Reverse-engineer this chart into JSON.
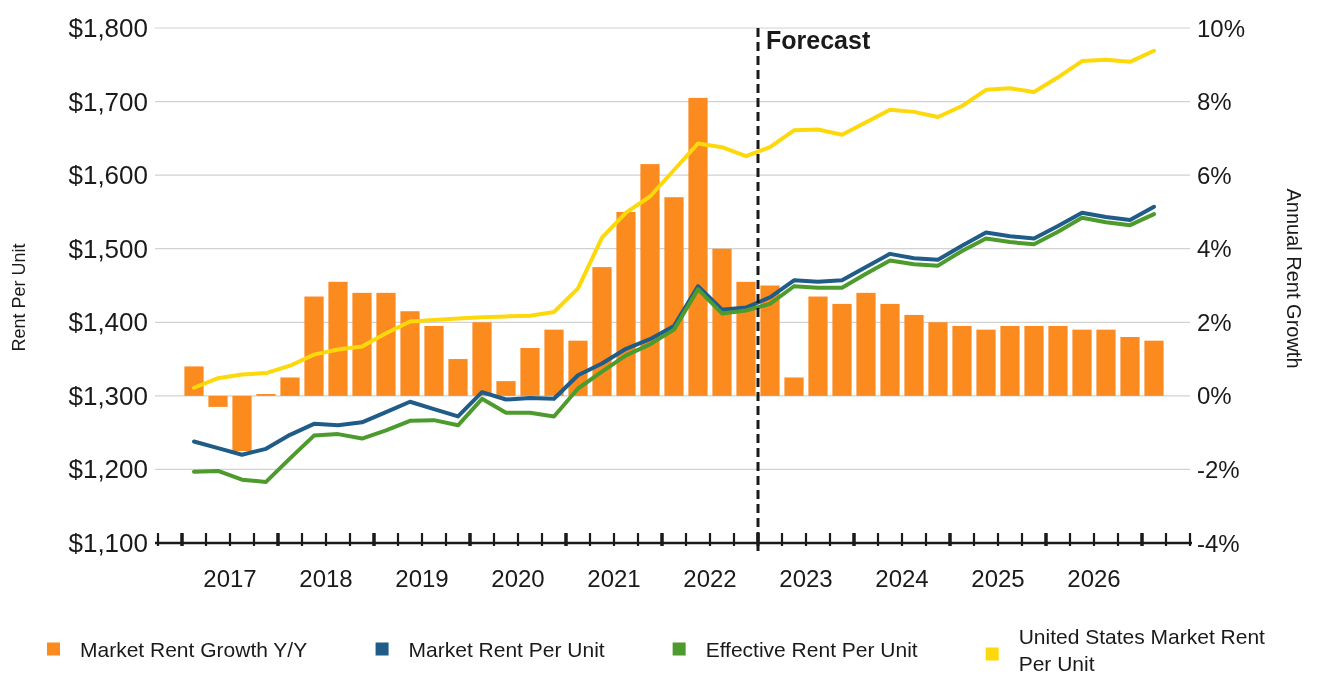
{
  "chart_data": {
    "type": "bar",
    "ylabel": "Rent Per Unit",
    "y2label": "Annual Rent Growth",
    "x": [
      2017.125,
      2017.375,
      2017.625,
      2017.875,
      2018.125,
      2018.375,
      2018.625,
      2018.875,
      2019.125,
      2019.375,
      2019.625,
      2019.875,
      2020.125,
      2020.375,
      2020.625,
      2020.875,
      2021.125,
      2021.375,
      2021.625,
      2021.875,
      2022.125,
      2022.375,
      2022.625,
      2022.875,
      2023.125,
      2023.375,
      2023.625,
      2023.875,
      2024.125,
      2024.375,
      2024.625,
      2024.875,
      2025.125,
      2025.375,
      2025.625,
      2025.875,
      2026.125,
      2026.375,
      2026.625,
      2026.875,
      2027.125
    ],
    "series": [
      {
        "name": "Market Rent Growth Y/Y",
        "axis": "y2",
        "color": "#fb8a1f",
        "values": [
          0.8,
          -0.3,
          -1.5,
          0.05,
          0.5,
          2.7,
          3.1,
          2.8,
          2.8,
          2.3,
          1.9,
          1.0,
          2.0,
          0.4,
          1.3,
          1.8,
          1.5,
          3.5,
          5.0,
          6.3,
          5.4,
          8.1,
          4.0,
          3.1,
          3.0,
          0.5,
          2.7,
          2.5,
          2.8,
          2.5,
          2.2,
          2.0,
          1.9,
          1.8,
          1.9,
          1.9,
          1.9,
          1.8,
          1.8,
          1.6,
          1.5
        ]
      },
      {
        "name": "Market Rent Per Unit",
        "type": "line",
        "color": "#1f5c87",
        "values": [
          1238,
          1229,
          1220,
          1228,
          1247,
          1262,
          1260,
          1264,
          1278,
          1292,
          1282,
          1272,
          1305,
          1295,
          1297,
          1296,
          1328,
          1344,
          1364,
          1377,
          1395,
          1449,
          1417,
          1420,
          1434,
          1457,
          1455,
          1457,
          1475,
          1493,
          1487,
          1485,
          1504,
          1522,
          1517,
          1514,
          1531,
          1549,
          1543,
          1539,
          1557
        ]
      },
      {
        "name": "Effective Rent Per Unit",
        "type": "line",
        "color": "#4d9a2d",
        "values": [
          1197,
          1198,
          1186,
          1183,
          1215,
          1246,
          1248,
          1242,
          1253,
          1266,
          1267,
          1260,
          1296,
          1277,
          1277,
          1272,
          1310,
          1333,
          1355,
          1370,
          1390,
          1445,
          1412,
          1416,
          1425,
          1449,
          1447,
          1447,
          1466,
          1484,
          1479,
          1477,
          1497,
          1514,
          1509,
          1506,
          1523,
          1542,
          1536,
          1532,
          1547
        ]
      },
      {
        "name": "United States Market Rent Per Unit",
        "type": "line",
        "color": "#fdd80b",
        "values": [
          1311,
          1324,
          1329,
          1331,
          1341,
          1356,
          1363,
          1367,
          1385,
          1401,
          1403,
          1405,
          1407,
          1408,
          1409,
          1414,
          1446,
          1515,
          1549,
          1571,
          1607,
          1643,
          1638,
          1626,
          1638,
          1661,
          1662,
          1655,
          1672,
          1689,
          1686,
          1679,
          1694,
          1716,
          1718,
          1713,
          1733,
          1755,
          1757,
          1754,
          1769
        ]
      }
    ],
    "xlim": [
      2016.75,
      2027.5
    ],
    "xticks": [
      {
        "value": 2016.75,
        "label": null
      },
      {
        "value": 2017,
        "label": null
      },
      {
        "value": 2017.25,
        "label": null
      },
      {
        "value": 2017.5,
        "label": "2017"
      },
      {
        "value": 2017.75,
        "label": null
      },
      {
        "value": 2018,
        "label": null
      },
      {
        "value": 2018.25,
        "label": null
      },
      {
        "value": 2018.5,
        "label": "2018"
      },
      {
        "value": 2018.75,
        "label": null
      },
      {
        "value": 2019,
        "label": null
      },
      {
        "value": 2019.25,
        "label": null
      },
      {
        "value": 2019.5,
        "label": "2019"
      },
      {
        "value": 2019.75,
        "label": null
      },
      {
        "value": 2020,
        "label": null
      },
      {
        "value": 2020.25,
        "label": null
      },
      {
        "value": 2020.5,
        "label": "2020"
      },
      {
        "value": 2020.75,
        "label": null
      },
      {
        "value": 2021,
        "label": null
      },
      {
        "value": 2021.25,
        "label": null
      },
      {
        "value": 2021.5,
        "label": "2021"
      },
      {
        "value": 2021.75,
        "label": null
      },
      {
        "value": 2022,
        "label": null
      },
      {
        "value": 2022.25,
        "label": null
      },
      {
        "value": 2022.5,
        "label": "2022"
      },
      {
        "value": 2022.75,
        "label": null
      },
      {
        "value": 2023,
        "label": null
      },
      {
        "value": 2023.25,
        "label": null
      },
      {
        "value": 2023.5,
        "label": "2023"
      },
      {
        "value": 2023.75,
        "label": null
      },
      {
        "value": 2024,
        "label": null
      },
      {
        "value": 2024.25,
        "label": null
      },
      {
        "value": 2024.5,
        "label": "2024"
      },
      {
        "value": 2024.75,
        "label": null
      },
      {
        "value": 2025,
        "label": null
      },
      {
        "value": 2025.25,
        "label": null
      },
      {
        "value": 2025.5,
        "label": "2025"
      },
      {
        "value": 2025.75,
        "label": null
      },
      {
        "value": 2026,
        "label": null
      },
      {
        "value": 2026.25,
        "label": null
      },
      {
        "value": 2026.5,
        "label": "2026"
      },
      {
        "value": 2026.75,
        "label": null
      },
      {
        "value": 2027,
        "label": null
      },
      {
        "value": 2027.25,
        "label": null
      },
      {
        "value": 2027.5,
        "label": null
      }
    ],
    "ylim": [
      1100,
      1800
    ],
    "yticks": [
      {
        "value": 1100,
        "label": "$1,100"
      },
      {
        "value": 1200,
        "label": "$1,200"
      },
      {
        "value": 1300,
        "label": "$1,300"
      },
      {
        "value": 1400,
        "label": "$1,400"
      },
      {
        "value": 1500,
        "label": "$1,500"
      },
      {
        "value": 1600,
        "label": "$1,600"
      },
      {
        "value": 1700,
        "label": "$1,700"
      },
      {
        "value": 1800,
        "label": "$1,800"
      }
    ],
    "y2lim": [
      -4,
      10
    ],
    "y2ticks": [
      {
        "value": -4,
        "label": "-4%"
      },
      {
        "value": -2,
        "label": "-2%"
      },
      {
        "value": 0,
        "label": "0%"
      },
      {
        "value": 2,
        "label": "2%"
      },
      {
        "value": 4,
        "label": "4%"
      },
      {
        "value": 6,
        "label": "6%"
      },
      {
        "value": 8,
        "label": "8%"
      },
      {
        "value": 10,
        "label": "10%"
      }
    ],
    "grid": "y",
    "legend": "bottom",
    "ref_lines": [
      {
        "axis": "x",
        "value": 2023,
        "label": "Forecast",
        "line_style": "dashed",
        "color": "#1a1a1a"
      }
    ]
  }
}
